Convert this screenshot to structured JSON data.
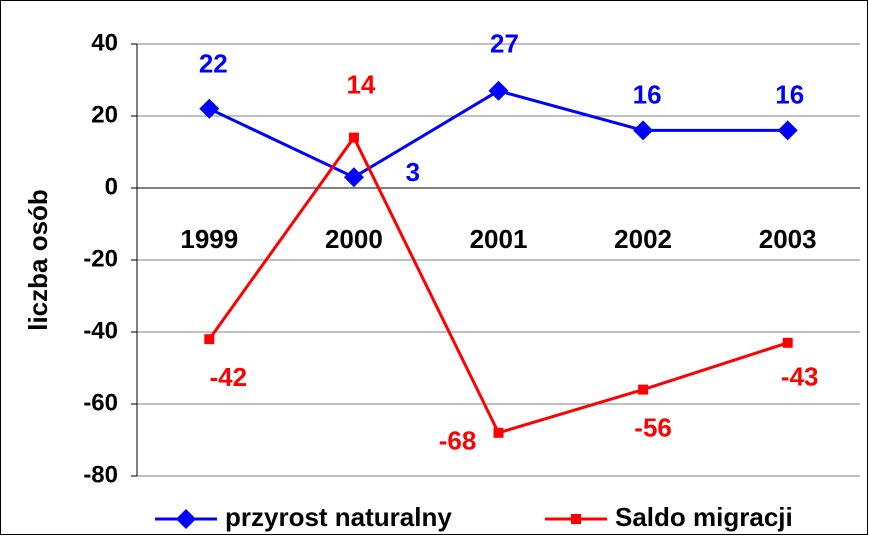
{
  "chart_data": {
    "type": "line",
    "y_label": "liczba osób",
    "categories": [
      "1999",
      "2000",
      "2001",
      "2002",
      "2003"
    ],
    "series": [
      {
        "name": "przyrost naturalny",
        "color": "#0000ff",
        "marker": "diamond",
        "values": [
          22,
          3,
          27,
          16,
          16
        ]
      },
      {
        "name": "Saldo migracji",
        "color": "#ff0000",
        "marker": "square",
        "values": [
          -42,
          14,
          -68,
          -56,
          -43
        ]
      }
    ],
    "ylim": [
      -80,
      40
    ],
    "yticks": [
      -80,
      -60,
      -40,
      -20,
      0,
      20,
      40
    ],
    "grid": true,
    "legend": "bottom"
  }
}
